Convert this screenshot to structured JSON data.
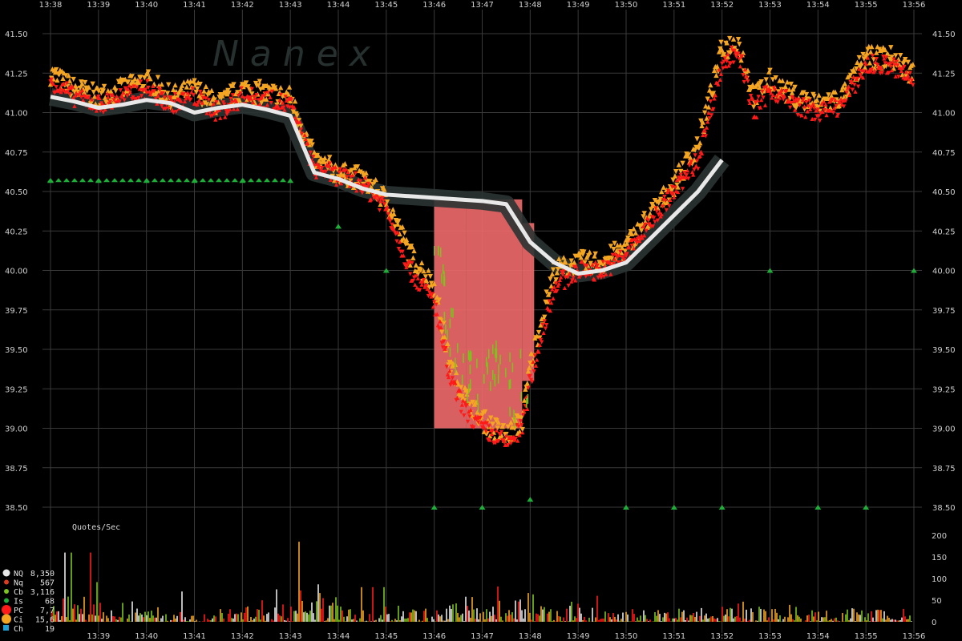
{
  "watermark": "N a n e x",
  "colors": {
    "background": "#000000",
    "grid": "#3a3a3a",
    "NQ": "#e8e8e8",
    "Nq": "#e03a1e",
    "Cb": "#7cc31c",
    "Is": "#1fae3a",
    "PC": "#ff1a1a",
    "Ci": "#f4a623",
    "Ch": "#1f9fd6",
    "nbbo_band": "#2a3433",
    "gap_fill": "#f06a6a"
  },
  "chart_data": [
    {
      "type": "scatter",
      "panel": "price",
      "title": "",
      "xlabel": "",
      "ylabel": "",
      "x_ticks": [
        "13:38",
        "13:39",
        "13:40",
        "13:41",
        "13:42",
        "13:43",
        "13:44",
        "13:45",
        "13:46",
        "13:47",
        "13:48",
        "13:49",
        "13:50",
        "13:51",
        "13:52",
        "13:53",
        "13:54",
        "13:55",
        "13:56"
      ],
      "y_ticks": [
        "41.50",
        "41.25",
        "41.00",
        "40.75",
        "40.50",
        "40.25",
        "40.00",
        "39.75",
        "39.50",
        "39.25",
        "39.00",
        "38.75",
        "38.50"
      ],
      "xlim": [
        "13:38",
        "13:56"
      ],
      "ylim": [
        38.37,
        41.6
      ],
      "grid": true,
      "series": [
        {
          "name": "NQ",
          "x": [
            "13:38:00",
            "13:38:30",
            "13:39:00",
            "13:39:30",
            "13:40:00",
            "13:40:30",
            "13:41:00",
            "13:41:30",
            "13:42:00",
            "13:42:30",
            "13:43:00",
            "13:43:30",
            "13:44:00",
            "13:44:30",
            "13:45:00",
            "13:45:30",
            "13:46:00",
            "13:46:30",
            "13:47:00",
            "13:47:30",
            "13:48:00",
            "13:48:30",
            "13:49:00",
            "13:49:30",
            "13:50:00",
            "13:50:30",
            "13:51:00",
            "13:51:30",
            "13:52:00"
          ],
          "y": [
            41.1,
            41.07,
            41.03,
            41.05,
            41.08,
            41.06,
            41.0,
            41.03,
            41.05,
            41.02,
            40.98,
            40.62,
            40.58,
            40.52,
            40.48,
            40.47,
            40.46,
            40.45,
            40.44,
            40.42,
            40.18,
            40.05,
            39.98,
            40.0,
            40.05,
            40.2,
            40.35,
            40.5,
            40.7
          ]
        },
        {
          "name": "PC",
          "x": [
            "13:38:00",
            "13:38:30",
            "13:39:00",
            "13:39:30",
            "13:40:00",
            "13:40:30",
            "13:41:00",
            "13:41:30",
            "13:42:00",
            "13:42:30",
            "13:43:00",
            "13:43:30",
            "13:44:00",
            "13:44:30",
            "13:45:00",
            "13:45:30",
            "13:46:00",
            "13:46:20",
            "13:46:40",
            "13:47:00",
            "13:47:30",
            "13:47:50",
            "13:48:00",
            "13:48:30",
            "13:49:00",
            "13:49:30",
            "13:50:00",
            "13:50:30",
            "13:51:00",
            "13:51:30",
            "13:52:00",
            "13:52:20",
            "13:52:40",
            "13:53:00",
            "13:53:30",
            "13:54:00",
            "13:54:30",
            "13:55:00",
            "13:55:30",
            "13:56:00"
          ],
          "y": [
            41.2,
            41.1,
            41.05,
            41.1,
            41.15,
            41.05,
            41.1,
            41.0,
            41.1,
            41.08,
            41.05,
            40.65,
            40.6,
            40.55,
            40.4,
            40.0,
            39.8,
            39.3,
            39.1,
            39.0,
            38.9,
            39.0,
            39.3,
            39.9,
            40.0,
            40.0,
            40.1,
            40.3,
            40.5,
            40.7,
            41.3,
            41.4,
            41.0,
            41.15,
            41.05,
            41.0,
            41.05,
            41.3,
            41.3,
            41.2
          ]
        },
        {
          "name": "Ci",
          "x": [
            "13:38:00",
            "13:38:30",
            "13:39:00",
            "13:39:30",
            "13:40:00",
            "13:40:30",
            "13:41:00",
            "13:41:30",
            "13:42:00",
            "13:42:30",
            "13:43:00",
            "13:43:30",
            "13:44:00",
            "13:44:30",
            "13:45:00",
            "13:45:30",
            "13:46:00",
            "13:46:20",
            "13:46:40",
            "13:47:00",
            "13:47:30",
            "13:47:50",
            "13:48:00",
            "13:48:30",
            "13:49:00",
            "13:49:30",
            "13:50:00",
            "13:50:30",
            "13:51:00",
            "13:51:30",
            "13:52:00",
            "13:52:20",
            "13:52:40",
            "13:53:00",
            "13:53:30",
            "13:54:00",
            "13:54:30",
            "13:55:00",
            "13:55:30",
            "13:56:00"
          ],
          "y": [
            41.25,
            41.15,
            41.1,
            41.15,
            41.2,
            41.1,
            41.15,
            41.05,
            41.15,
            41.12,
            41.1,
            40.7,
            40.62,
            40.58,
            40.45,
            40.1,
            39.9,
            39.4,
            39.2,
            39.05,
            38.95,
            39.05,
            39.4,
            40.0,
            40.05,
            40.05,
            40.15,
            40.35,
            40.55,
            40.8,
            41.4,
            41.45,
            41.1,
            41.2,
            41.1,
            41.05,
            41.1,
            41.35,
            41.35,
            41.25
          ]
        },
        {
          "name": "Cb",
          "x": [
            "13:46:00",
            "13:46:20",
            "13:46:40",
            "13:47:00",
            "13:47:20",
            "13:47:40",
            "13:48:00"
          ],
          "y": [
            40.2,
            39.6,
            39.3,
            39.2,
            39.5,
            39.2,
            39.4
          ]
        },
        {
          "name": "Is",
          "x": [
            "13:38:00",
            "13:39:00",
            "13:40:00",
            "13:41:00",
            "13:42:00",
            "13:43:00",
            "13:44:00",
            "13:45:00",
            "13:46:00",
            "13:47:00",
            "13:48:00",
            "13:50:00",
            "13:51:00",
            "13:52:00",
            "13:53:00",
            "13:54:00",
            "13:55:00",
            "13:56:00"
          ],
          "y": [
            40.57,
            40.57,
            40.57,
            40.57,
            40.57,
            40.57,
            40.28,
            40.0,
            38.5,
            38.5,
            38.55,
            38.5,
            38.5,
            38.5,
            40.0,
            38.5,
            38.5,
            40.0
          ]
        }
      ]
    },
    {
      "type": "bar",
      "panel": "quotes_per_sec",
      "title": "Quotes/Sec",
      "y_ticks": [
        "200",
        "150",
        "100",
        "50",
        "0"
      ],
      "ylim": [
        0,
        200
      ],
      "x_ticks": [
        "13:39",
        "13:40",
        "13:41",
        "13:42",
        "13:43",
        "13:44",
        "13:45",
        "13:46",
        "13:47",
        "13:48",
        "13:49",
        "13:50",
        "13:51",
        "13:52",
        "13:53",
        "13:54",
        "13:55",
        "13:56"
      ],
      "values_by_minute": [
        160,
        90,
        70,
        60,
        75,
        185,
        80,
        85,
        110,
        130,
        110,
        60,
        50,
        55,
        100,
        70,
        60,
        55
      ],
      "legend": [
        {
          "code": "NQ",
          "count": "8,350"
        },
        {
          "code": "Nq",
          "count": "567"
        },
        {
          "code": "Cb",
          "count": "3,116"
        },
        {
          "code": "Is",
          "count": "68"
        },
        {
          "code": "PC",
          "count": "7,7"
        },
        {
          "code": "Ci",
          "count": "15,6"
        },
        {
          "code": "Ch",
          "count": "19"
        }
      ]
    }
  ]
}
